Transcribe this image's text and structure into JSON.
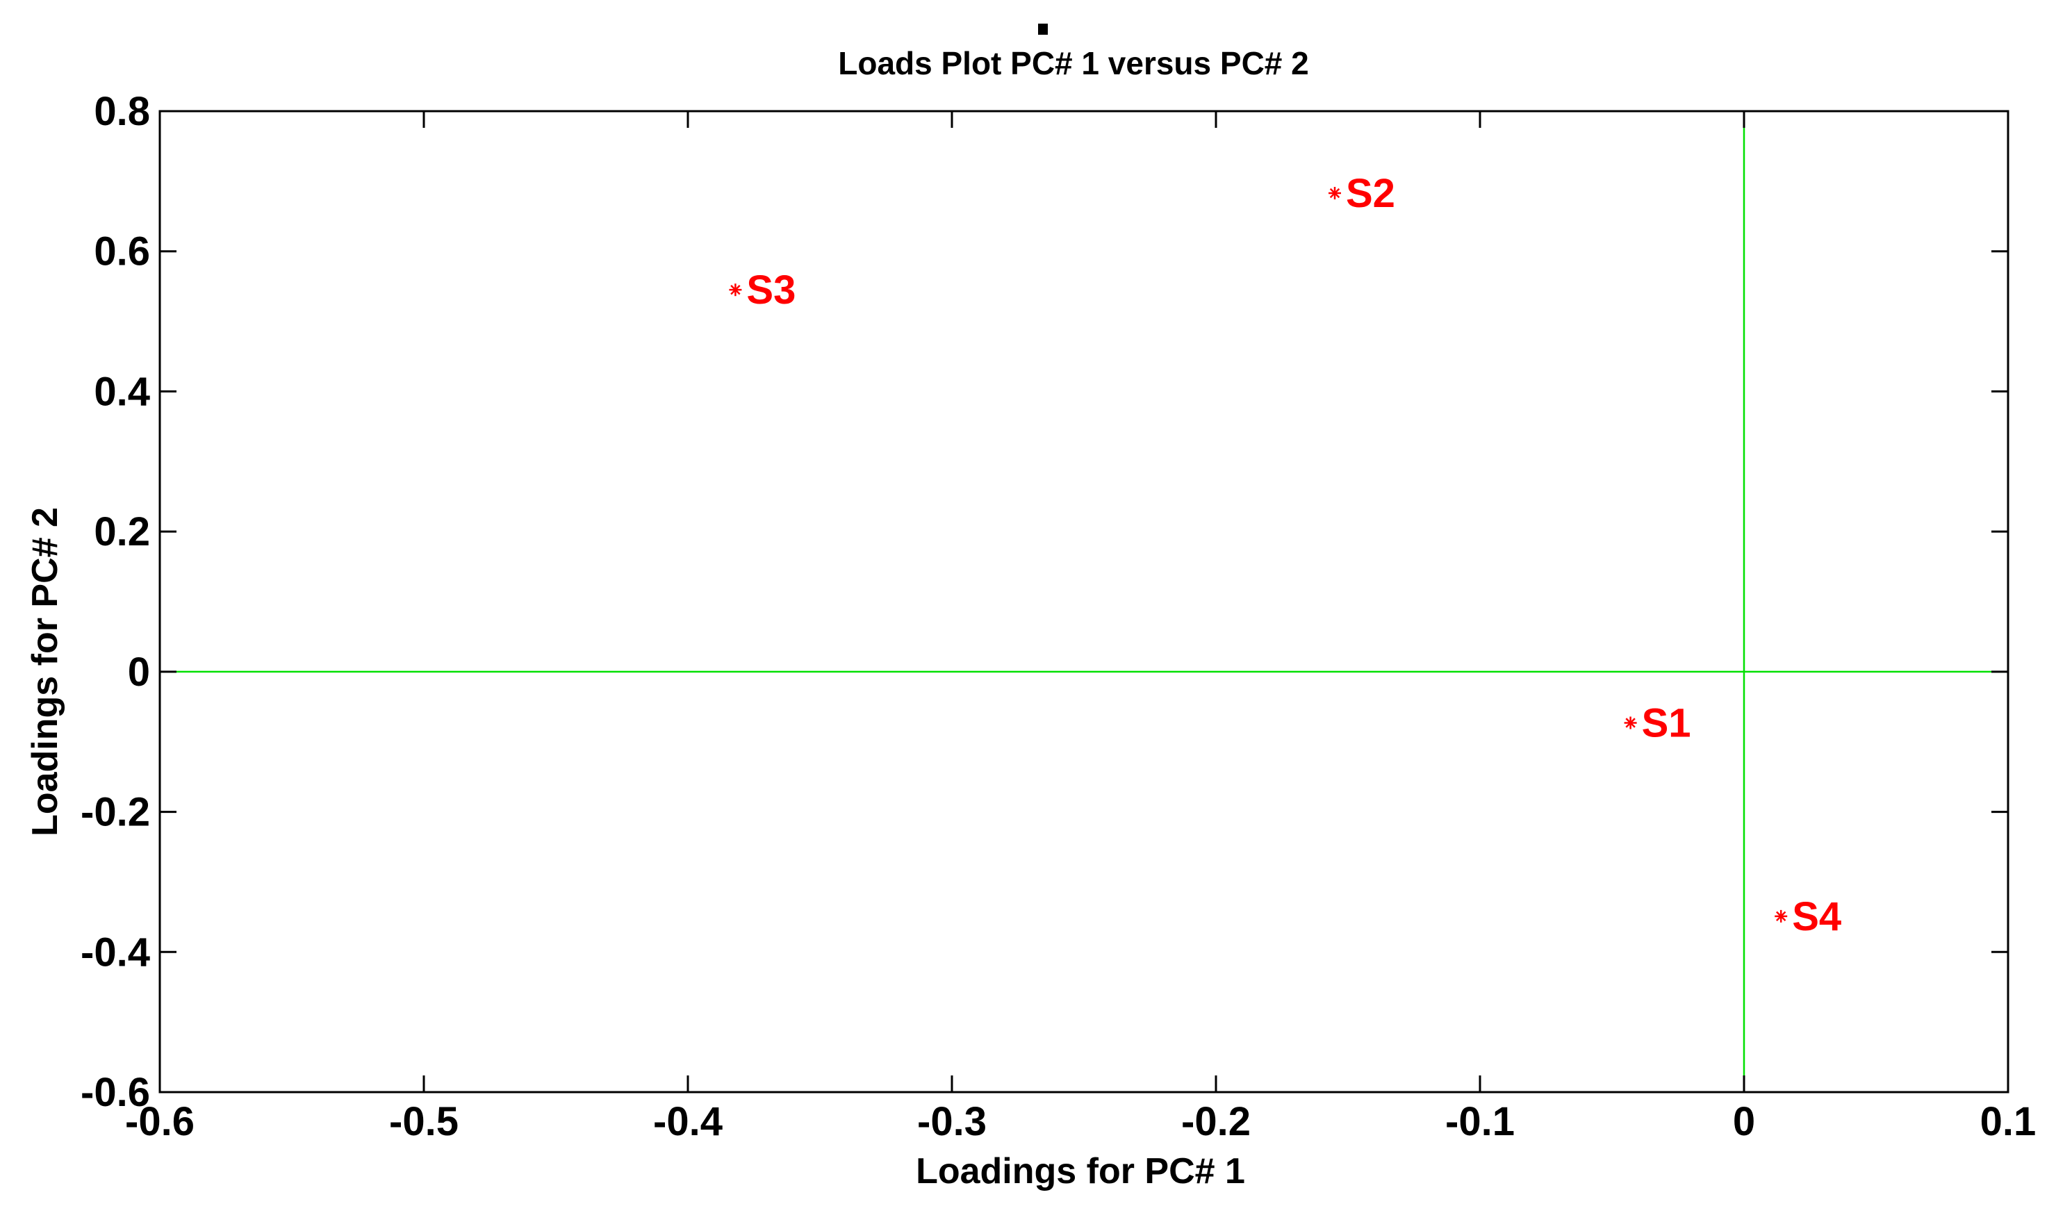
{
  "chart_data": {
    "type": "scatter",
    "title": "Loads Plot PC# 1 versus PC# 2",
    "xlabel": "Loadings for PC# 1",
    "ylabel": "Loadings for PC# 2",
    "xlim": [
      -0.6,
      0.1
    ],
    "ylim": [
      -0.6,
      0.8
    ],
    "x_ticks": [
      -0.6,
      -0.5,
      -0.4,
      -0.3,
      -0.2,
      -0.1,
      0,
      0.1
    ],
    "x_tick_labels": [
      "-0.6",
      "-0.5",
      "-0.4",
      "-0.3",
      "-0.2",
      "-0.1",
      "0",
      "0.1"
    ],
    "y_ticks": [
      0.8,
      0.6,
      0.4,
      0.2,
      0,
      -0.2,
      -0.4,
      -0.6
    ],
    "y_tick_labels": [
      "0.8",
      "0.6",
      "0.4",
      "0.2",
      "0",
      "-0.2",
      "-0.4",
      "-0.6"
    ],
    "grid": false,
    "reference_lines": {
      "x": 0,
      "y": 0
    },
    "points": [
      {
        "label": "S1",
        "x": -0.043,
        "y": -0.073
      },
      {
        "label": "S2",
        "x": -0.155,
        "y": 0.683
      },
      {
        "label": "S3",
        "x": -0.382,
        "y": 0.545
      },
      {
        "label": "S4",
        "x": 0.014,
        "y": -0.349
      }
    ],
    "colors": {
      "points": "#ff0000",
      "reference_lines": "#00e000",
      "axes": "#000000"
    }
  }
}
